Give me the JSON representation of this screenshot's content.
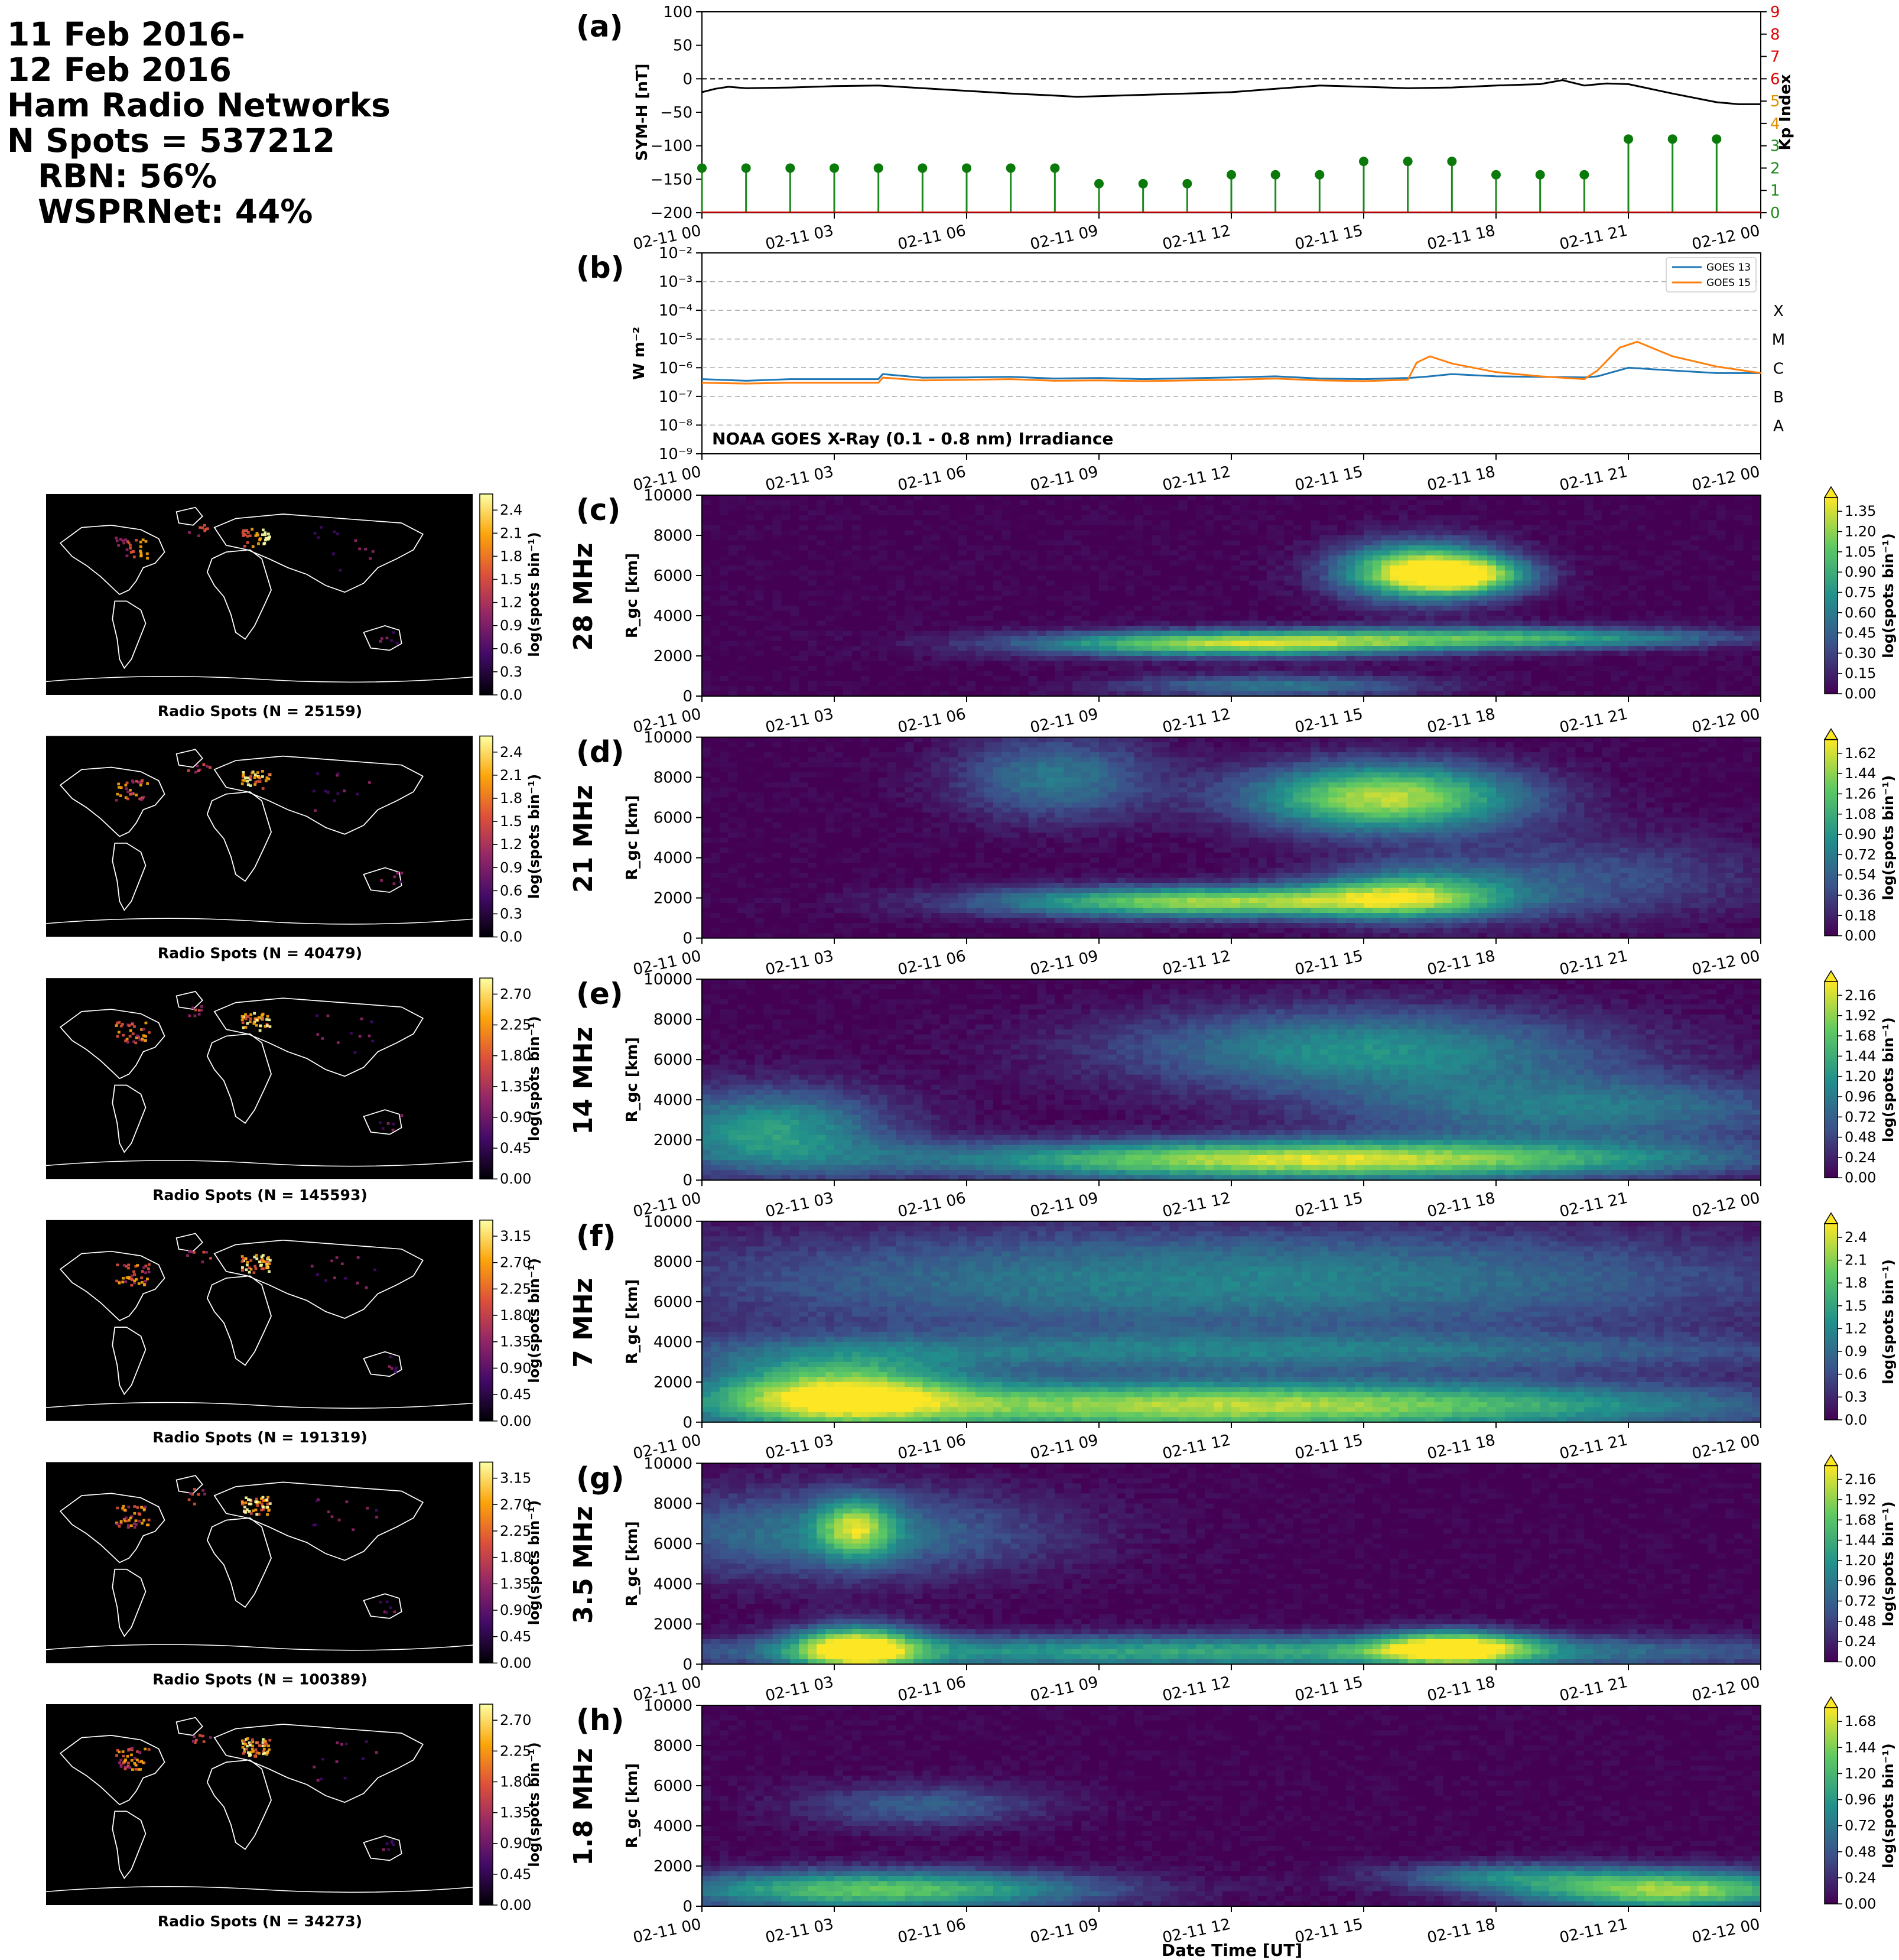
{
  "header": {
    "lines": [
      "11 Feb 2016-",
      "12 Feb 2016",
      "Ham Radio Networks",
      "N Spots = 537212"
    ],
    "rbn": "RBN: 56%",
    "wsprnet": "WSPRNet: 44%"
  },
  "colors": {
    "symh_line": "#000000",
    "kp_stem": "#1a8a1a",
    "kp_marker": "#0a7a0a",
    "kp_right_axis_red": "#e00000",
    "kp_right_axis_orange": "#e09000",
    "kp_right_axis_green": "#1a8a1a",
    "goes13": "#1f77b4",
    "goes15": "#ff7f0e",
    "map_bg": "#000000",
    "coast": "#ffffff",
    "viridis": [
      "#440154",
      "#3b528b",
      "#21918c",
      "#5ec962",
      "#fde725"
    ],
    "inferno": [
      "#000004",
      "#420a68",
      "#932667",
      "#dd513a",
      "#fca50a",
      "#fcffa4"
    ]
  },
  "time_ticks": [
    "02-11 00",
    "02-11 03",
    "02-11 06",
    "02-11 09",
    "02-11 12",
    "02-11 15",
    "02-11 18",
    "02-11 21",
    "02-12 00"
  ],
  "xlabel_bottom": "Date Time [UT]",
  "chart_data": [
    {
      "id": "a",
      "label": "(a)",
      "type": "line",
      "title": "",
      "ylabel": "SYM-H [nT]",
      "ylabel_right": "Kp Index",
      "ylim": [
        -200,
        100
      ],
      "yticks": [
        "100",
        "50",
        "0",
        "−50",
        "−100",
        "−150",
        "−200"
      ],
      "ylim_right": [
        0,
        9
      ],
      "yticks_right": [
        "0",
        "1",
        "2",
        "3",
        "4",
        "5",
        "6",
        "7",
        "8",
        "9"
      ],
      "xlim_hours": [
        0,
        24
      ],
      "zero_line": "dashed",
      "symh": {
        "x_hours": [
          0,
          0.3,
          0.6,
          1,
          2,
          3,
          4,
          5,
          6,
          7,
          8,
          8.5,
          9,
          10,
          11,
          12,
          13,
          14,
          14.5,
          15,
          16,
          17,
          18,
          19,
          19.5,
          20,
          20.5,
          21,
          22,
          23,
          23.5,
          24
        ],
        "values": [
          -20,
          -15,
          -12,
          -14,
          -13,
          -11,
          -10,
          -14,
          -18,
          -22,
          -25,
          -27,
          -26,
          -24,
          -22,
          -20,
          -15,
          -10,
          -11,
          -12,
          -14,
          -13,
          -10,
          -8,
          -2,
          -10,
          -7,
          -8,
          -22,
          -35,
          -38,
          -38
        ]
      },
      "kp": {
        "x_hours": [
          0,
          1,
          2,
          3,
          4,
          5,
          6,
          7,
          8,
          9,
          10,
          11,
          12,
          13,
          14,
          15,
          16,
          17,
          18,
          19,
          20,
          21,
          22,
          23
        ],
        "values": [
          2,
          2,
          2,
          2,
          2,
          2,
          2,
          2,
          2,
          1.3,
          1.3,
          1.3,
          1.7,
          1.7,
          1.7,
          2.3,
          2.3,
          2.3,
          1.7,
          1.7,
          1.7,
          3.3,
          3.3,
          3.3
        ]
      }
    },
    {
      "id": "b",
      "label": "(b)",
      "type": "line",
      "ylabel": "W m⁻²",
      "yscale": "log",
      "ylim": [
        1e-09,
        0.01
      ],
      "yticks": [
        "10⁻²",
        "10⁻³",
        "10⁻⁴",
        "10⁻⁵",
        "10⁻⁶",
        "10⁻⁷",
        "10⁻⁸",
        "10⁻⁹"
      ],
      "class_labels": [
        "X",
        "M",
        "C",
        "B",
        "A"
      ],
      "annotation": "NOAA GOES X-Ray (0.1 - 0.8 nm) Irradiance",
      "legend_placement": "top-right",
      "series": [
        {
          "name": "GOES 13",
          "x_hours": [
            0,
            1,
            2,
            4,
            4.1,
            5,
            6,
            7,
            8,
            9,
            10,
            12,
            13,
            14,
            15,
            16,
            16.2,
            16.5,
            17,
            18,
            19,
            20,
            20.3,
            21,
            22,
            23,
            24
          ],
          "values": [
            4e-07,
            3.5e-07,
            4e-07,
            4e-07,
            6e-07,
            4.5e-07,
            4.6e-07,
            4.8e-07,
            4.2e-07,
            4.4e-07,
            4e-07,
            4.6e-07,
            5e-07,
            4.2e-07,
            4e-07,
            4.4e-07,
            4.6e-07,
            5e-07,
            6e-07,
            5e-07,
            4.8e-07,
            4.6e-07,
            5e-07,
            1e-06,
            8e-07,
            6.5e-07,
            6.5e-07
          ]
        },
        {
          "name": "GOES 15",
          "x_hours": [
            0,
            1,
            2,
            4,
            4.1,
            5,
            6,
            7,
            8,
            9,
            10,
            12,
            13,
            14,
            15,
            16,
            16.2,
            16.5,
            17,
            18,
            19,
            20,
            20.3,
            20.8,
            21.2,
            22,
            23,
            24
          ],
          "values": [
            3e-07,
            2.8e-07,
            3e-07,
            3e-07,
            4.5e-07,
            3.6e-07,
            3.8e-07,
            4e-07,
            3.5e-07,
            3.6e-07,
            3.4e-07,
            3.8e-07,
            4.2e-07,
            3.6e-07,
            3.4e-07,
            3.8e-07,
            1.5e-06,
            2.5e-06,
            1.4e-06,
            7e-07,
            5e-07,
            4e-07,
            8e-07,
            5e-06,
            8e-06,
            2.5e-06,
            1.1e-06,
            6.5e-07
          ]
        }
      ]
    },
    {
      "id": "c",
      "label": "(c)",
      "band": "28 MHz",
      "type": "heatmap",
      "ylabel": "R_gc [km]",
      "ylim": [
        0,
        10000
      ],
      "yticks": [
        "0",
        "2000",
        "4000",
        "6000",
        "8000",
        "10000"
      ],
      "colorbar_label": "log(spots bin⁻¹)",
      "colorbar_ticks": [
        "0.00",
        "0.15",
        "0.30",
        "0.45",
        "0.60",
        "0.75",
        "0.90",
        "1.05",
        "1.20",
        "1.35"
      ],
      "blobs": [
        {
          "t": 16.3,
          "r": 6200,
          "st": 1.3,
          "sr": 1000,
          "v": 1.0
        },
        {
          "t": 17.5,
          "r": 6000,
          "st": 1.0,
          "sr": 600,
          "v": 0.55
        },
        {
          "t": 12,
          "r": 2600,
          "st": 3.3,
          "sr": 450,
          "v": 0.85
        },
        {
          "t": 18.5,
          "r": 2900,
          "st": 3.5,
          "sr": 380,
          "v": 0.6
        },
        {
          "t": 13,
          "r": 500,
          "st": 2.5,
          "sr": 400,
          "v": 0.4
        }
      ],
      "map_caption": "Radio Spots (N = 25159)",
      "map_colorbar_ticks": [
        "0.0",
        "0.3",
        "0.6",
        "0.9",
        "1.2",
        "1.5",
        "1.8",
        "2.1",
        "2.4"
      ]
    },
    {
      "id": "d",
      "label": "(d)",
      "band": "21 MHz",
      "type": "heatmap",
      "ylabel": "R_gc [km]",
      "ylim": [
        0,
        10000
      ],
      "yticks": [
        "0",
        "2000",
        "4000",
        "6000",
        "8000",
        "10000"
      ],
      "colorbar_label": "log(spots bin⁻¹)",
      "colorbar_ticks": [
        "0.00",
        "0.18",
        "0.36",
        "0.54",
        "0.72",
        "0.90",
        "1.08",
        "1.26",
        "1.44",
        "1.62"
      ],
      "blobs": [
        {
          "t": 15.5,
          "r": 7000,
          "st": 2.2,
          "sr": 1200,
          "v": 0.9
        },
        {
          "t": 8,
          "r": 8000,
          "st": 1.6,
          "sr": 1500,
          "v": 0.4
        },
        {
          "t": 11.5,
          "r": 1800,
          "st": 3.5,
          "sr": 550,
          "v": 0.85
        },
        {
          "t": 16,
          "r": 2200,
          "st": 1.6,
          "sr": 900,
          "v": 0.6
        },
        {
          "t": 20,
          "r": 3000,
          "st": 3,
          "sr": 1500,
          "v": 0.25
        }
      ],
      "map_caption": "Radio Spots (N = 40479)",
      "map_colorbar_ticks": [
        "0.0",
        "0.3",
        "0.6",
        "0.9",
        "1.2",
        "1.5",
        "1.8",
        "2.1",
        "2.4"
      ]
    },
    {
      "id": "e",
      "label": "(e)",
      "band": "14 MHz",
      "type": "heatmap",
      "ylabel": "R_gc [km]",
      "ylim": [
        0,
        10000
      ],
      "yticks": [
        "0",
        "2000",
        "4000",
        "6000",
        "8000",
        "10000"
      ],
      "colorbar_label": "log(spots bin⁻¹)",
      "colorbar_ticks": [
        "0.00",
        "0.24",
        "0.48",
        "0.72",
        "0.96",
        "1.20",
        "1.44",
        "1.68",
        "1.92",
        "2.16"
      ],
      "blobs": [
        {
          "t": 14,
          "r": 1000,
          "st": 6,
          "sr": 700,
          "v": 0.95
        },
        {
          "t": 1.5,
          "r": 2500,
          "st": 2,
          "sr": 1500,
          "v": 0.55
        },
        {
          "t": 15,
          "r": 6500,
          "st": 4,
          "sr": 1500,
          "v": 0.5
        },
        {
          "t": 20,
          "r": 3500,
          "st": 4,
          "sr": 1200,
          "v": 0.4
        }
      ],
      "map_caption": "Radio Spots (N = 145593)",
      "map_colorbar_ticks": [
        "0.00",
        "0.45",
        "0.90",
        "1.35",
        "1.80",
        "2.25",
        "2.70"
      ]
    },
    {
      "id": "f",
      "label": "(f)",
      "band": "7 MHz",
      "type": "heatmap",
      "ylabel": "R_gc [km]",
      "ylim": [
        0,
        10000
      ],
      "yticks": [
        "0",
        "2000",
        "4000",
        "6000",
        "8000",
        "10000"
      ],
      "colorbar_label": "log(spots bin⁻¹)",
      "colorbar_ticks": [
        "0.0",
        "0.3",
        "0.6",
        "0.9",
        "1.2",
        "1.5",
        "1.8",
        "2.1",
        "2.4"
      ],
      "blobs": [
        {
          "t": 12,
          "r": 800,
          "st": 8,
          "sr": 900,
          "v": 0.9
        },
        {
          "t": 3,
          "r": 1500,
          "st": 2,
          "sr": 1200,
          "v": 0.75
        },
        {
          "t": 12,
          "r": 7000,
          "st": 9,
          "sr": 2000,
          "v": 0.45
        },
        {
          "t": 12,
          "r": 3500,
          "st": 10,
          "sr": 700,
          "v": 0.35
        }
      ],
      "map_caption": "Radio Spots (N = 191319)",
      "map_colorbar_ticks": [
        "0.00",
        "0.45",
        "0.90",
        "1.35",
        "1.80",
        "2.25",
        "2.70",
        "3.15"
      ]
    },
    {
      "id": "g",
      "label": "(g)",
      "band": "3.5 MHz",
      "type": "heatmap",
      "ylabel": "R_gc [km]",
      "ylim": [
        0,
        10000
      ],
      "yticks": [
        "0",
        "2000",
        "4000",
        "6000",
        "8000",
        "10000"
      ],
      "colorbar_label": "log(spots bin⁻¹)",
      "colorbar_ticks": [
        "0.00",
        "0.24",
        "0.48",
        "0.72",
        "0.96",
        "1.20",
        "1.44",
        "1.68",
        "1.92",
        "2.16"
      ],
      "blobs": [
        {
          "t": 3.5,
          "r": 800,
          "st": 1,
          "sr": 800,
          "v": 0.95
        },
        {
          "t": 17,
          "r": 800,
          "st": 1.2,
          "sr": 600,
          "v": 0.85
        },
        {
          "t": 12,
          "r": 600,
          "st": 9,
          "sr": 600,
          "v": 0.6
        },
        {
          "t": 3.5,
          "r": 6800,
          "st": 0.6,
          "sr": 1000,
          "v": 0.6
        },
        {
          "t": 3,
          "r": 6500,
          "st": 3.5,
          "sr": 1600,
          "v": 0.4
        }
      ],
      "map_caption": "Radio Spots (N = 100389)",
      "map_colorbar_ticks": [
        "0.00",
        "0.45",
        "0.90",
        "1.35",
        "1.80",
        "2.25",
        "2.70",
        "3.15"
      ]
    },
    {
      "id": "h",
      "label": "(h)",
      "band": "1.8 MHz",
      "type": "heatmap",
      "ylabel": "R_gc [km]",
      "ylim": [
        0,
        10000
      ],
      "yticks": [
        "0",
        "2000",
        "4000",
        "6000",
        "8000",
        "10000"
      ],
      "colorbar_label": "log(spots bin⁻¹)",
      "colorbar_ticks": [
        "0.00",
        "0.24",
        "0.48",
        "0.72",
        "0.96",
        "1.20",
        "1.44",
        "1.68"
      ],
      "blobs": [
        {
          "t": 4,
          "r": 800,
          "st": 3.5,
          "sr": 700,
          "v": 0.75
        },
        {
          "t": 22,
          "r": 800,
          "st": 2.5,
          "sr": 700,
          "v": 0.85
        },
        {
          "t": 18,
          "r": 1500,
          "st": 2,
          "sr": 500,
          "v": 0.35
        },
        {
          "t": 5,
          "r": 5000,
          "st": 2,
          "sr": 800,
          "v": 0.3
        }
      ],
      "map_caption": "Radio Spots (N = 34273)",
      "map_colorbar_ticks": [
        "0.00",
        "0.45",
        "0.90",
        "1.35",
        "1.80",
        "2.25",
        "2.70"
      ]
    }
  ]
}
